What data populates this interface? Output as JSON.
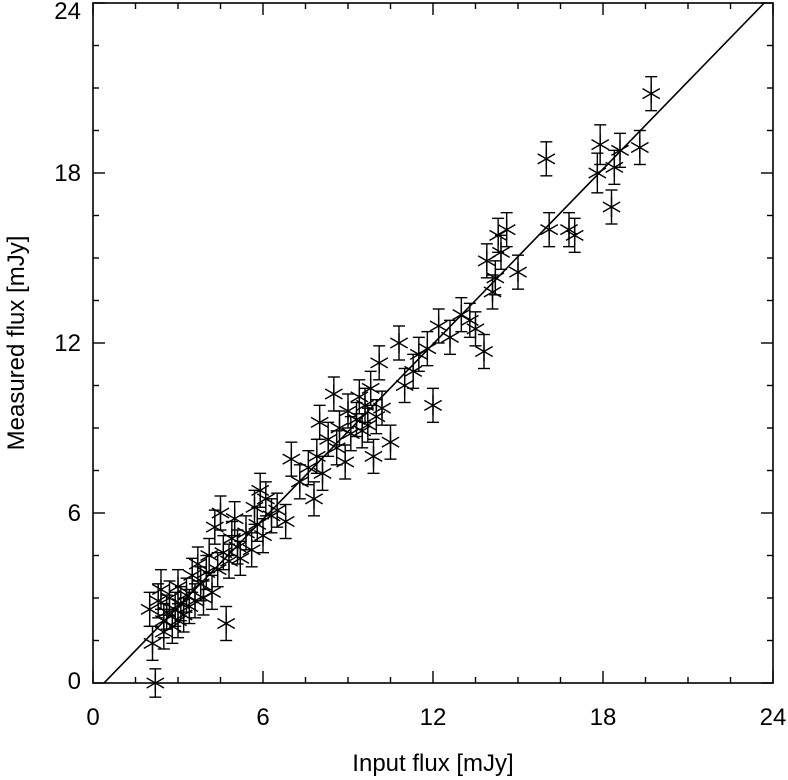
{
  "chart_data": {
    "type": "scatter",
    "title": "",
    "xlabel": "Input flux [mJy]",
    "ylabel": "Measured flux [mJy]",
    "xlim": [
      0,
      24
    ],
    "ylim": [
      0,
      24
    ],
    "xticks": [
      0,
      6,
      12,
      18,
      24
    ],
    "yticks": [
      0,
      6,
      12,
      18,
      24
    ],
    "xtick_labels": [
      "0",
      "6",
      "12",
      "18",
      "24"
    ],
    "ytick_labels": [
      "0",
      "6",
      "12",
      "18",
      "24"
    ],
    "minor_ticks_per_interval": 3,
    "grid": false,
    "marker": "asterisk",
    "marker_color": "#000000",
    "error_bars": true,
    "reference_line": {
      "intercept": -0.4,
      "slope": 1.03
    },
    "series": [
      {
        "points": [
          {
            "x": 2.0,
            "y": 2.6,
            "err": 0.6
          },
          {
            "x": 2.1,
            "y": 1.4,
            "err": 0.6
          },
          {
            "x": 2.2,
            "y": 0.0,
            "err": 0.5
          },
          {
            "x": 2.3,
            "y": 2.9,
            "err": 0.6
          },
          {
            "x": 2.4,
            "y": 3.3,
            "err": 0.7
          },
          {
            "x": 2.5,
            "y": 2.2,
            "err": 0.6
          },
          {
            "x": 2.5,
            "y": 1.8,
            "err": 0.6
          },
          {
            "x": 2.6,
            "y": 2.5,
            "err": 0.6
          },
          {
            "x": 2.7,
            "y": 3.0,
            "err": 0.6
          },
          {
            "x": 2.8,
            "y": 2.0,
            "err": 0.6
          },
          {
            "x": 2.9,
            "y": 2.6,
            "err": 0.6
          },
          {
            "x": 3.0,
            "y": 3.4,
            "err": 0.6
          },
          {
            "x": 3.0,
            "y": 2.2,
            "err": 0.6
          },
          {
            "x": 3.1,
            "y": 2.8,
            "err": 0.6
          },
          {
            "x": 3.2,
            "y": 2.4,
            "err": 0.6
          },
          {
            "x": 3.3,
            "y": 3.1,
            "err": 0.6
          },
          {
            "x": 3.4,
            "y": 2.7,
            "err": 0.6
          },
          {
            "x": 3.5,
            "y": 3.8,
            "err": 0.6
          },
          {
            "x": 3.6,
            "y": 2.9,
            "err": 0.6
          },
          {
            "x": 3.7,
            "y": 4.2,
            "err": 0.6
          },
          {
            "x": 3.8,
            "y": 3.5,
            "err": 0.6
          },
          {
            "x": 3.9,
            "y": 3.0,
            "err": 0.6
          },
          {
            "x": 4.0,
            "y": 3.9,
            "err": 0.6
          },
          {
            "x": 4.1,
            "y": 4.5,
            "err": 0.6
          },
          {
            "x": 4.2,
            "y": 3.2,
            "err": 0.6
          },
          {
            "x": 4.3,
            "y": 5.5,
            "err": 0.6
          },
          {
            "x": 4.4,
            "y": 4.0,
            "err": 0.6
          },
          {
            "x": 4.5,
            "y": 6.0,
            "err": 0.6
          },
          {
            "x": 4.6,
            "y": 4.6,
            "err": 0.6
          },
          {
            "x": 4.7,
            "y": 2.1,
            "err": 0.6
          },
          {
            "x": 4.8,
            "y": 4.3,
            "err": 0.6
          },
          {
            "x": 4.9,
            "y": 5.1,
            "err": 0.6
          },
          {
            "x": 5.0,
            "y": 5.8,
            "err": 0.6
          },
          {
            "x": 5.1,
            "y": 4.8,
            "err": 0.6
          },
          {
            "x": 5.2,
            "y": 4.4,
            "err": 0.6
          },
          {
            "x": 5.4,
            "y": 5.3,
            "err": 0.6
          },
          {
            "x": 5.6,
            "y": 4.7,
            "err": 0.6
          },
          {
            "x": 5.7,
            "y": 6.2,
            "err": 0.6
          },
          {
            "x": 5.8,
            "y": 5.6,
            "err": 0.6
          },
          {
            "x": 5.9,
            "y": 6.8,
            "err": 0.6
          },
          {
            "x": 6.0,
            "y": 5.2,
            "err": 0.6
          },
          {
            "x": 6.1,
            "y": 6.5,
            "err": 0.6
          },
          {
            "x": 6.3,
            "y": 5.9,
            "err": 0.6
          },
          {
            "x": 6.5,
            "y": 6.1,
            "err": 0.6
          },
          {
            "x": 6.8,
            "y": 5.7,
            "err": 0.6
          },
          {
            "x": 7.0,
            "y": 7.9,
            "err": 0.6
          },
          {
            "x": 7.3,
            "y": 7.1,
            "err": 0.6
          },
          {
            "x": 7.6,
            "y": 7.6,
            "err": 0.6
          },
          {
            "x": 7.8,
            "y": 6.5,
            "err": 0.6
          },
          {
            "x": 7.9,
            "y": 8.0,
            "err": 0.6
          },
          {
            "x": 8.0,
            "y": 9.2,
            "err": 0.6
          },
          {
            "x": 8.1,
            "y": 7.4,
            "err": 0.6
          },
          {
            "x": 8.3,
            "y": 8.6,
            "err": 0.6
          },
          {
            "x": 8.5,
            "y": 10.2,
            "err": 0.6
          },
          {
            "x": 8.6,
            "y": 8.3,
            "err": 0.6
          },
          {
            "x": 8.7,
            "y": 9.0,
            "err": 0.6
          },
          {
            "x": 8.9,
            "y": 7.8,
            "err": 0.6
          },
          {
            "x": 9.0,
            "y": 9.6,
            "err": 0.6
          },
          {
            "x": 9.1,
            "y": 8.8,
            "err": 0.6
          },
          {
            "x": 9.3,
            "y": 9.3,
            "err": 0.6
          },
          {
            "x": 9.4,
            "y": 10.1,
            "err": 0.6
          },
          {
            "x": 9.5,
            "y": 8.9,
            "err": 0.6
          },
          {
            "x": 9.6,
            "y": 9.8,
            "err": 0.6
          },
          {
            "x": 9.7,
            "y": 9.1,
            "err": 0.6
          },
          {
            "x": 9.8,
            "y": 10.4,
            "err": 0.6
          },
          {
            "x": 9.9,
            "y": 8.0,
            "err": 0.6
          },
          {
            "x": 10.0,
            "y": 9.4,
            "err": 0.6
          },
          {
            "x": 10.1,
            "y": 11.3,
            "err": 0.6
          },
          {
            "x": 10.2,
            "y": 9.7,
            "err": 0.6
          },
          {
            "x": 10.5,
            "y": 8.5,
            "err": 0.6
          },
          {
            "x": 10.8,
            "y": 12.0,
            "err": 0.6
          },
          {
            "x": 11.0,
            "y": 10.5,
            "err": 0.6
          },
          {
            "x": 11.3,
            "y": 11.0,
            "err": 0.6
          },
          {
            "x": 11.5,
            "y": 11.6,
            "err": 0.6
          },
          {
            "x": 11.8,
            "y": 11.8,
            "err": 0.6
          },
          {
            "x": 12.0,
            "y": 9.8,
            "err": 0.6
          },
          {
            "x": 12.2,
            "y": 12.6,
            "err": 0.6
          },
          {
            "x": 12.6,
            "y": 12.2,
            "err": 0.6
          },
          {
            "x": 13.0,
            "y": 13.0,
            "err": 0.6
          },
          {
            "x": 13.3,
            "y": 12.8,
            "err": 0.6
          },
          {
            "x": 13.5,
            "y": 12.5,
            "err": 0.6
          },
          {
            "x": 13.8,
            "y": 11.7,
            "err": 0.6
          },
          {
            "x": 13.9,
            "y": 14.9,
            "err": 0.6
          },
          {
            "x": 14.1,
            "y": 13.8,
            "err": 0.6
          },
          {
            "x": 14.2,
            "y": 14.3,
            "err": 0.6
          },
          {
            "x": 14.3,
            "y": 15.8,
            "err": 0.6
          },
          {
            "x": 14.4,
            "y": 15.2,
            "err": 0.6
          },
          {
            "x": 14.6,
            "y": 16.0,
            "err": 0.6
          },
          {
            "x": 15.0,
            "y": 14.5,
            "err": 0.6
          },
          {
            "x": 16.0,
            "y": 18.5,
            "err": 0.6
          },
          {
            "x": 16.1,
            "y": 16.0,
            "err": 0.6
          },
          {
            "x": 16.8,
            "y": 16.0,
            "err": 0.6
          },
          {
            "x": 17.0,
            "y": 15.8,
            "err": 0.6
          },
          {
            "x": 17.8,
            "y": 18.0,
            "err": 0.7
          },
          {
            "x": 17.9,
            "y": 19.0,
            "err": 0.7
          },
          {
            "x": 18.3,
            "y": 16.8,
            "err": 0.6
          },
          {
            "x": 18.4,
            "y": 18.2,
            "err": 0.6
          },
          {
            "x": 18.6,
            "y": 18.8,
            "err": 0.6
          },
          {
            "x": 19.3,
            "y": 18.9,
            "err": 0.6
          },
          {
            "x": 19.7,
            "y": 20.8,
            "err": 0.6
          }
        ]
      }
    ]
  }
}
